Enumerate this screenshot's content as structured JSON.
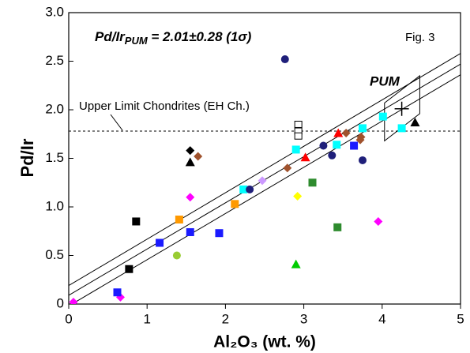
{
  "chart_data": {
    "type": "scatter",
    "annotation": {
      "text": "Pd/Ir",
      "sub": "PUM",
      "rest": " = 2.01±0.28 (1σ)"
    },
    "fig_label": "Fig. 3",
    "pum_label": "PUM",
    "x_label": "Al₂O₃ (wt. %)",
    "y_label": "Pd/Ir",
    "xlim": [
      0,
      5
    ],
    "ylim": [
      0,
      3
    ],
    "xticks": [
      0,
      1,
      2,
      3,
      4,
      5
    ],
    "yticks": [
      0,
      0.5,
      {
        "value": 1,
        "label": "1.0"
      },
      1.5,
      {
        "value": 2,
        "label": "2.0"
      },
      2.5,
      {
        "value": 3,
        "label": "3.0"
      }
    ],
    "hline": {
      "value": 1.78,
      "label": "Upper Limit Chondrites (EH Ch.)"
    },
    "series": [
      {
        "type": "line",
        "color": "#000000",
        "x": [
          0,
          5
        ],
        "values": [
          0.19,
          2.58
        ]
      },
      {
        "type": "line",
        "color": "#000000",
        "x": [
          0,
          5
        ],
        "values": [
          0.09,
          2.47
        ]
      },
      {
        "type": "line",
        "color": "#000000",
        "x": [
          0,
          5
        ],
        "values": [
          -0.02,
          2.36
        ]
      },
      {
        "type": "polygon",
        "color": "#000000",
        "x": [
          4.03,
          4.03,
          4.48,
          4.48
        ],
        "values": [
          1.68,
          2.07,
          2.35,
          1.96
        ]
      },
      {
        "marker": "plus",
        "color": "#000000",
        "x": [
          4.25
        ],
        "values": [
          2.01
        ]
      },
      {
        "marker": "diamond",
        "color": "#ff00ff",
        "x": [
          0.06,
          0.66,
          1.55,
          3.95
        ],
        "values": [
          0.02,
          0.07,
          1.1,
          0.85
        ]
      },
      {
        "marker": "square",
        "color": "#1a1aff",
        "x": [
          0.62,
          1.16,
          1.55,
          1.92,
          3.64
        ],
        "values": [
          0.12,
          0.63,
          0.74,
          0.73,
          1.63
        ]
      },
      {
        "marker": "square",
        "color": "#000000",
        "x": [
          0.77,
          0.86
        ],
        "values": [
          0.36,
          0.85
        ]
      },
      {
        "marker": "square",
        "color": "#ff9900",
        "x": [
          1.41,
          2.12
        ],
        "values": [
          0.87,
          1.03
        ]
      },
      {
        "marker": "circle",
        "color": "#99cc33",
        "x": [
          1.38
        ],
        "values": [
          0.5
        ]
      },
      {
        "marker": "diamond",
        "color": "#000000",
        "x": [
          1.55
        ],
        "values": [
          1.58
        ]
      },
      {
        "marker": "triangle",
        "color": "#000000",
        "x": [
          1.55,
          4.42
        ],
        "values": [
          1.46,
          1.87
        ]
      },
      {
        "marker": "diamond",
        "color": "#a0522d",
        "x": [
          1.65,
          2.79,
          3.54,
          3.72,
          3.73
        ],
        "values": [
          1.52,
          1.4,
          1.76,
          1.69,
          1.72
        ]
      },
      {
        "marker": "square",
        "color": "#00ffff",
        "x": [
          2.23,
          2.9,
          3.42,
          3.75,
          4.01,
          4.25
        ],
        "values": [
          1.18,
          1.59,
          1.64,
          1.81,
          1.93,
          1.81
        ]
      },
      {
        "marker": "circle",
        "color": "#1f1f7a",
        "x": [
          2.31,
          2.76,
          3.25,
          3.36,
          3.75
        ],
        "values": [
          1.18,
          2.52,
          1.63,
          1.53,
          1.48
        ]
      },
      {
        "marker": "diamond",
        "color": "#cc99ff",
        "x": [
          2.47
        ],
        "values": [
          1.27
        ]
      },
      {
        "marker": "open-square",
        "color": "#000000",
        "x": [
          2.93,
          2.93,
          2.93
        ],
        "values": [
          1.85,
          1.78,
          1.73
        ]
      },
      {
        "marker": "diamond",
        "color": "#ffff00",
        "x": [
          2.92
        ],
        "values": [
          1.11
        ]
      },
      {
        "marker": "triangle",
        "color": "#00cc00",
        "x": [
          2.9
        ],
        "values": [
          0.41
        ]
      },
      {
        "marker": "triangle",
        "color": "#ff0000",
        "x": [
          3.02,
          3.44
        ],
        "values": [
          1.51,
          1.76
        ]
      },
      {
        "marker": "square",
        "color": "#2e8b2e",
        "x": [
          3.11,
          3.43
        ],
        "values": [
          1.25,
          0.79
        ]
      }
    ]
  }
}
